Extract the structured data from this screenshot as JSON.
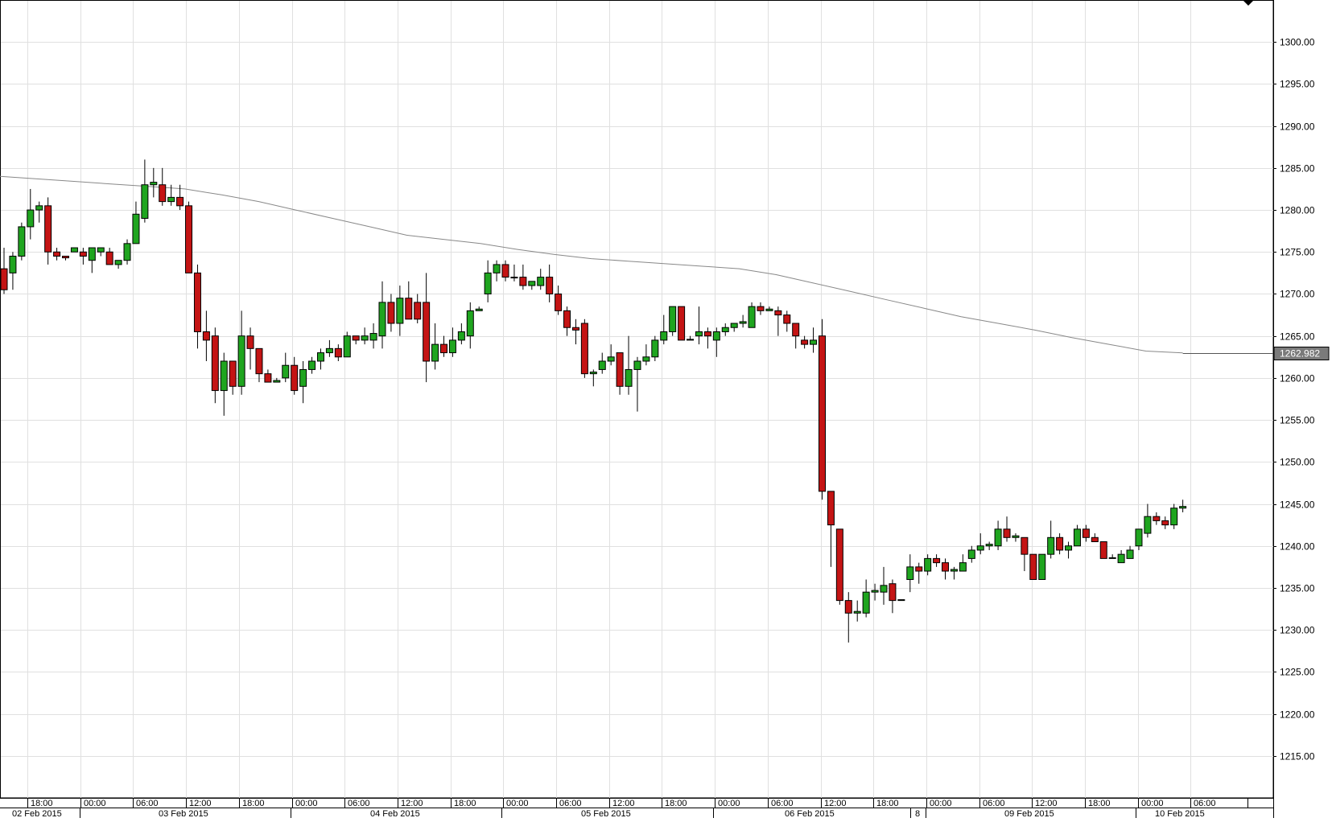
{
  "chart_data": {
    "type": "candlestick",
    "instrument": "",
    "ylim": [
      1210,
      1305
    ],
    "y_ticks": [
      1215,
      1220,
      1225,
      1230,
      1235,
      1240,
      1245,
      1250,
      1255,
      1260,
      1265,
      1270,
      1275,
      1280,
      1285,
      1290,
      1295,
      1300
    ],
    "y_tick_labels": [
      "1215.00",
      "1220.00",
      "1225.00",
      "1230.00",
      "1235.00",
      "1240.00",
      "1245.00",
      "1250.00",
      "1255.00",
      "1260.00",
      "1265.00",
      "1270.00",
      "1275.00",
      "1280.00",
      "1285.00",
      "1290.00",
      "1295.00",
      "1300.00"
    ],
    "current_price_label": "1262.982",
    "current_price": 1262.982,
    "time_labels": [
      "18:00",
      "00:00",
      "06:00",
      "12:00",
      "18:00",
      "00:00",
      "06:00",
      "12:00",
      "18:00",
      "00:00",
      "06:00",
      "12:00",
      "18:00",
      "00:00",
      "06:00",
      "12:00",
      "18:00",
      "00:00",
      "06:00",
      "12:00",
      "18:00",
      "00:00",
      "06:00"
    ],
    "date_labels": [
      "02 Feb 2015",
      "03 Feb 2015",
      "04 Feb 2015",
      "05 Feb 2015",
      "06 Feb 2015",
      "8",
      "09 Feb 2015",
      "10 Feb 2015"
    ],
    "colors": {
      "up": "#1fa51f",
      "down": "#c41414",
      "ma": "#888888",
      "grid": "#e0e0e0"
    },
    "candles": [
      [
        1273.0,
        1270.5,
        1275.5,
        1270.0
      ],
      [
        1272.5,
        1274.5,
        1275.0,
        1270.5
      ],
      [
        1274.5,
        1278.0,
        1278.5,
        1274.0
      ],
      [
        1278.0,
        1280.0,
        1282.5,
        1276.5
      ],
      [
        1280.0,
        1280.5,
        1281.0,
        1278.5
      ],
      [
        1280.5,
        1275.0,
        1281.5,
        1273.5
      ],
      [
        1275.0,
        1274.5,
        1275.5,
        1274.0
      ],
      [
        1274.5,
        1274.3,
        1274.5,
        1274.0
      ],
      [
        1275.0,
        1275.5,
        1275.5,
        1275.0
      ],
      [
        1275.0,
        1274.5,
        1275.5,
        1273.5
      ],
      [
        1274.0,
        1275.5,
        1275.5,
        1272.5
      ],
      [
        1275.0,
        1275.5,
        1275.5,
        1274.5
      ],
      [
        1275.0,
        1273.5,
        1275.5,
        1273.5
      ],
      [
        1273.5,
        1274.0,
        1274.0,
        1273.0
      ],
      [
        1274.0,
        1276.0,
        1276.5,
        1273.5
      ],
      [
        1276.0,
        1279.5,
        1281.0,
        1276.0
      ],
      [
        1279.0,
        1283.0,
        1286.0,
        1278.5
      ],
      [
        1283.0,
        1283.3,
        1285.0,
        1281.5
      ],
      [
        1283.0,
        1281.0,
        1285.0,
        1280.5
      ],
      [
        1281.0,
        1281.5,
        1283.0,
        1280.5
      ],
      [
        1281.5,
        1280.5,
        1283.0,
        1280.0
      ],
      [
        1280.5,
        1272.5,
        1281.0,
        1272.5
      ],
      [
        1272.5,
        1265.5,
        1273.5,
        1263.5
      ],
      [
        1265.5,
        1264.5,
        1268.0,
        1262.0
      ],
      [
        1265.0,
        1258.5,
        1266.0,
        1257.0
      ],
      [
        1258.5,
        1262.0,
        1263.0,
        1255.5
      ],
      [
        1262.0,
        1259.0,
        1262.0,
        1258.0
      ],
      [
        1259.0,
        1265.0,
        1268.0,
        1258.0
      ],
      [
        1265.0,
        1263.5,
        1266.0,
        1261.0
      ],
      [
        1263.5,
        1260.5,
        1263.5,
        1259.5
      ],
      [
        1260.5,
        1259.5,
        1261.0,
        1259.5
      ],
      [
        1259.5,
        1259.7,
        1260.0,
        1259.5
      ],
      [
        1260.0,
        1261.5,
        1263.0,
        1259.5
      ],
      [
        1261.5,
        1258.5,
        1262.5,
        1258.0
      ],
      [
        1259.0,
        1261.0,
        1262.0,
        1257.0
      ],
      [
        1261.0,
        1262.0,
        1262.5,
        1260.5
      ],
      [
        1262.0,
        1263.0,
        1263.5,
        1261.0
      ],
      [
        1263.0,
        1263.5,
        1264.5,
        1262.5
      ],
      [
        1263.5,
        1262.5,
        1264.0,
        1262.0
      ],
      [
        1262.5,
        1265.0,
        1265.5,
        1262.5
      ],
      [
        1265.0,
        1264.5,
        1265.0,
        1264.0
      ],
      [
        1264.5,
        1265.0,
        1266.0,
        1264.0
      ],
      [
        1264.5,
        1265.3,
        1266.5,
        1263.5
      ],
      [
        1265.0,
        1269.0,
        1271.5,
        1263.5
      ],
      [
        1269.0,
        1266.5,
        1270.0,
        1265.5
      ],
      [
        1266.5,
        1269.5,
        1271.0,
        1265.0
      ],
      [
        1269.5,
        1267.0,
        1271.5,
        1267.0
      ],
      [
        1269.0,
        1267.0,
        1270.0,
        1266.5
      ],
      [
        1269.0,
        1262.0,
        1272.5,
        1259.5
      ],
      [
        1262.0,
        1264.0,
        1266.5,
        1261.0
      ],
      [
        1264.0,
        1263.0,
        1265.0,
        1262.5
      ],
      [
        1263.0,
        1264.5,
        1266.0,
        1262.5
      ],
      [
        1264.5,
        1265.5,
        1266.5,
        1264.0
      ],
      [
        1265.0,
        1268.0,
        1269.0,
        1263.5
      ],
      [
        1268.0,
        1268.2,
        1268.5,
        1268.0
      ],
      [
        1270.0,
        1272.5,
        1274.0,
        1269.0
      ],
      [
        1272.5,
        1273.5,
        1274.0,
        1271.5
      ],
      [
        1273.5,
        1272.0,
        1274.0,
        1271.5
      ],
      [
        1272.0,
        1272.0,
        1273.5,
        1271.5
      ],
      [
        1272.0,
        1271.0,
        1273.5,
        1270.5
      ],
      [
        1271.0,
        1271.5,
        1271.5,
        1270.5
      ],
      [
        1271.0,
        1272.0,
        1273.0,
        1270.5
      ],
      [
        1272.0,
        1270.0,
        1273.5,
        1269.0
      ],
      [
        1270.0,
        1268.0,
        1271.0,
        1267.5
      ],
      [
        1268.0,
        1266.0,
        1268.5,
        1265.0
      ],
      [
        1266.0,
        1265.7,
        1267.0,
        1264.0
      ],
      [
        1266.5,
        1260.5,
        1267.0,
        1260.0
      ],
      [
        1260.5,
        1260.7,
        1261.0,
        1259.0
      ],
      [
        1261.0,
        1262.0,
        1263.0,
        1260.5
      ],
      [
        1262.0,
        1262.5,
        1264.0,
        1261.5
      ],
      [
        1263.0,
        1259.0,
        1263.0,
        1258.0
      ],
      [
        1259.0,
        1261.0,
        1265.0,
        1258.0
      ],
      [
        1261.0,
        1262.0,
        1262.5,
        1256.0
      ],
      [
        1262.0,
        1262.5,
        1264.0,
        1261.5
      ],
      [
        1262.5,
        1264.5,
        1265.0,
        1262.0
      ],
      [
        1264.5,
        1265.5,
        1267.5,
        1264.0
      ],
      [
        1265.5,
        1268.5,
        1268.5,
        1265.0
      ],
      [
        1268.5,
        1264.5,
        1268.5,
        1264.5
      ],
      [
        1264.5,
        1264.6,
        1265.0,
        1264.5
      ],
      [
        1265.0,
        1265.5,
        1268.5,
        1264.0
      ],
      [
        1265.5,
        1265.0,
        1266.0,
        1263.5
      ],
      [
        1264.5,
        1265.5,
        1266.0,
        1262.5
      ],
      [
        1265.5,
        1266.0,
        1266.5,
        1265.0
      ],
      [
        1266.0,
        1266.5,
        1266.5,
        1265.5
      ],
      [
        1266.5,
        1266.7,
        1267.5,
        1266.0
      ],
      [
        1266.0,
        1268.5,
        1269.0,
        1266.0
      ],
      [
        1268.5,
        1268.0,
        1269.0,
        1267.5
      ],
      [
        1268.0,
        1268.2,
        1268.5,
        1268.0
      ],
      [
        1268.0,
        1267.5,
        1268.5,
        1265.0
      ],
      [
        1267.5,
        1266.5,
        1268.0,
        1265.5
      ],
      [
        1266.5,
        1265.0,
        1266.5,
        1263.5
      ],
      [
        1264.5,
        1264.0,
        1265.0,
        1263.5
      ],
      [
        1264.0,
        1264.5,
        1266.0,
        1263.0
      ],
      [
        1265.0,
        1246.5,
        1267.0,
        1245.5
      ],
      [
        1246.5,
        1242.5,
        1246.5,
        1237.5
      ],
      [
        1242.0,
        1233.5,
        1242.0,
        1233.0
      ],
      [
        1233.5,
        1232.0,
        1234.5,
        1228.5
      ],
      [
        1232.0,
        1232.2,
        1233.5,
        1231.0
      ],
      [
        1232.0,
        1234.5,
        1236.0,
        1231.5
      ],
      [
        1234.5,
        1234.7,
        1235.5,
        1233.5
      ],
      [
        1234.5,
        1235.3,
        1237.5,
        1233.0
      ],
      [
        1235.5,
        1233.5,
        1236.0,
        1232.0
      ],
      [
        1233.5,
        1233.6,
        1233.5,
        1233.5
      ],
      [
        1236.0,
        1237.5,
        1239.0,
        1234.5
      ],
      [
        1237.5,
        1237.0,
        1238.0,
        1235.5
      ],
      [
        1237.0,
        1238.5,
        1239.0,
        1236.5
      ],
      [
        1238.5,
        1238.0,
        1239.0,
        1237.5
      ],
      [
        1238.0,
        1237.0,
        1238.5,
        1236.0
      ],
      [
        1237.0,
        1237.2,
        1237.5,
        1236.0
      ],
      [
        1237.0,
        1238.0,
        1239.0,
        1237.0
      ],
      [
        1238.5,
        1239.5,
        1240.0,
        1238.0
      ],
      [
        1239.5,
        1240.0,
        1241.5,
        1239.0
      ],
      [
        1240.0,
        1240.2,
        1240.5,
        1239.5
      ],
      [
        1240.0,
        1242.0,
        1243.0,
        1239.5
      ],
      [
        1242.0,
        1241.0,
        1243.5,
        1240.5
      ],
      [
        1241.0,
        1241.2,
        1241.5,
        1240.5
      ],
      [
        1241.0,
        1239.0,
        1241.0,
        1237.0
      ],
      [
        1239.0,
        1236.0,
        1239.0,
        1236.0
      ],
      [
        1236.0,
        1239.0,
        1239.0,
        1236.0
      ],
      [
        1239.0,
        1241.0,
        1243.0,
        1238.5
      ],
      [
        1241.0,
        1239.5,
        1241.5,
        1239.0
      ],
      [
        1239.5,
        1240.0,
        1240.5,
        1238.5
      ],
      [
        1240.0,
        1242.0,
        1242.5,
        1240.0
      ],
      [
        1242.0,
        1241.0,
        1242.5,
        1240.5
      ],
      [
        1241.0,
        1240.5,
        1241.5,
        1240.5
      ],
      [
        1240.5,
        1238.5,
        1240.5,
        1238.5
      ],
      [
        1238.5,
        1238.6,
        1239.0,
        1238.5
      ],
      [
        1238.0,
        1239.0,
        1239.5,
        1238.0
      ],
      [
        1238.5,
        1239.5,
        1240.0,
        1238.5
      ],
      [
        1240.0,
        1242.0,
        1242.0,
        1239.5
      ],
      [
        1241.5,
        1243.5,
        1245.0,
        1241.0
      ],
      [
        1243.5,
        1243.0,
        1244.0,
        1242.5
      ],
      [
        1243.0,
        1242.5,
        1243.5,
        1242.0
      ],
      [
        1242.5,
        1244.5,
        1245.0,
        1242.0
      ],
      [
        1244.5,
        1244.7,
        1245.5,
        1244.0
      ]
    ],
    "ma_line": [
      1284.0,
      1283.7,
      1283.4,
      1283.1,
      1282.8,
      1282.5,
      1281.8,
      1281.0,
      1280.0,
      1279.0,
      1278.0,
      1277.0,
      1276.5,
      1276.0,
      1275.3,
      1274.7,
      1274.2,
      1273.9,
      1273.6,
      1273.3,
      1273.0,
      1272.3,
      1271.3,
      1270.3,
      1269.3,
      1268.3,
      1267.3,
      1266.5,
      1265.7,
      1264.8,
      1264.0,
      1263.2,
      1262.982
    ]
  }
}
